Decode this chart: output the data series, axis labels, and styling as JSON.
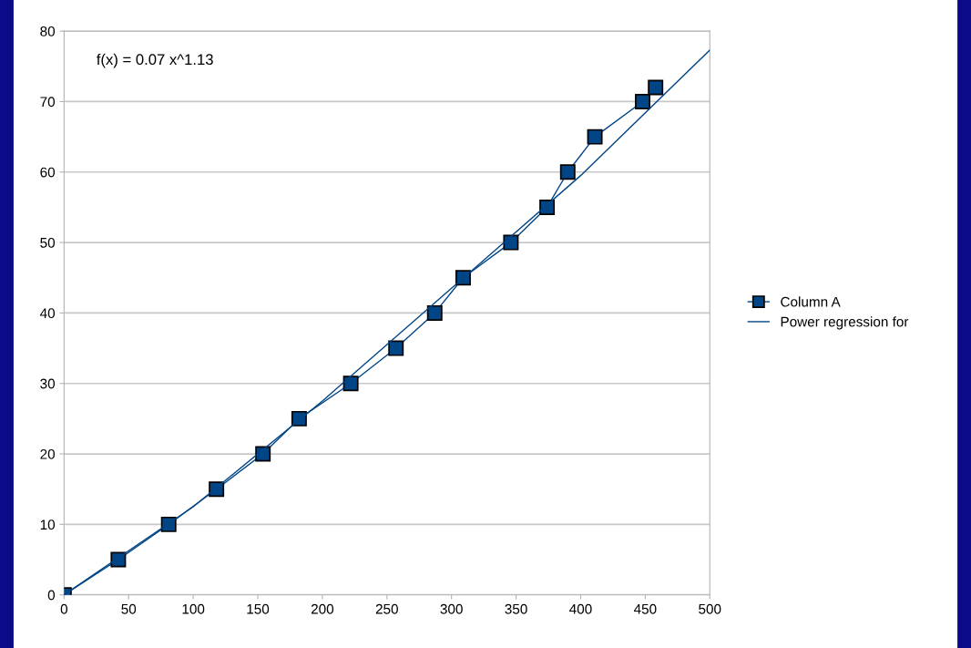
{
  "chart_data": {
    "type": "line",
    "annotations": [
      "f(x) = 0.07 x^1.13"
    ],
    "series": [
      {
        "name": "Column A",
        "color": "#004586",
        "marker": "square",
        "x": [
          0,
          42,
          81,
          118,
          154,
          182,
          222,
          257,
          287,
          309,
          346,
          374,
          390,
          411,
          448,
          458
        ],
        "values": [
          0,
          5,
          10,
          15,
          20,
          25,
          30,
          35,
          40,
          45,
          50,
          55,
          60,
          65,
          70,
          72
        ]
      },
      {
        "name": "Power regression for",
        "color": "#004586",
        "marker": "none",
        "x": [
          0,
          100,
          200,
          300,
          400,
          500
        ],
        "values": [
          0,
          12.5,
          27.5,
          43.5,
          59.5,
          77.3
        ]
      }
    ],
    "xlim": [
      0,
      500
    ],
    "xticks": [
      0,
      50,
      100,
      150,
      200,
      250,
      300,
      350,
      400,
      450,
      500
    ],
    "ylim": [
      0,
      80
    ],
    "yticks": [
      0,
      10,
      20,
      30,
      40,
      50,
      60,
      70,
      80
    ],
    "grid": "y",
    "legend": "right"
  }
}
